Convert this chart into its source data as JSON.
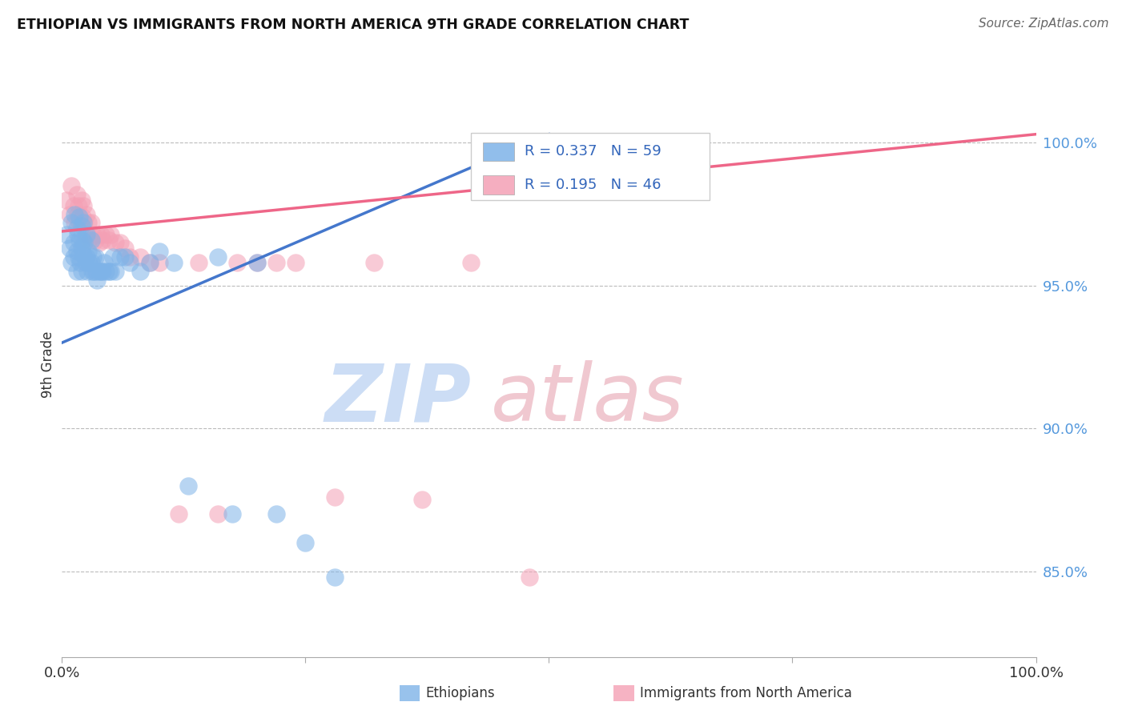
{
  "title": "ETHIOPIAN VS IMMIGRANTS FROM NORTH AMERICA 9TH GRADE CORRELATION CHART",
  "source": "Source: ZipAtlas.com",
  "ylabel": "9th Grade",
  "blue_R": 0.337,
  "blue_N": 59,
  "pink_R": 0.195,
  "pink_N": 46,
  "blue_color": "#7EB3E8",
  "pink_color": "#F4A0B5",
  "blue_line_color": "#4477CC",
  "pink_line_color": "#EE6688",
  "yticks": [
    "85.0%",
    "90.0%",
    "95.0%",
    "100.0%"
  ],
  "ytick_vals": [
    0.85,
    0.9,
    0.95,
    1.0
  ],
  "xlim": [
    0.0,
    1.0
  ],
  "ylim": [
    0.82,
    1.025
  ],
  "blue_trend_x": [
    0.0,
    0.5
  ],
  "blue_trend_y": [
    0.93,
    1.003
  ],
  "pink_trend_x": [
    0.0,
    1.0
  ],
  "pink_trend_y": [
    0.969,
    1.003
  ],
  "blue_scatter_x": [
    0.005,
    0.008,
    0.01,
    0.01,
    0.012,
    0.012,
    0.013,
    0.015,
    0.015,
    0.015,
    0.016,
    0.017,
    0.018,
    0.018,
    0.019,
    0.02,
    0.02,
    0.02,
    0.021,
    0.022,
    0.022,
    0.023,
    0.024,
    0.025,
    0.025,
    0.026,
    0.027,
    0.028,
    0.03,
    0.03,
    0.031,
    0.032,
    0.033,
    0.034,
    0.035,
    0.036,
    0.038,
    0.04,
    0.042,
    0.043,
    0.045,
    0.048,
    0.05,
    0.052,
    0.055,
    0.06,
    0.065,
    0.07,
    0.08,
    0.09,
    0.1,
    0.115,
    0.13,
    0.16,
    0.175,
    0.2,
    0.22,
    0.25,
    0.28
  ],
  "blue_scatter_y": [
    0.968,
    0.963,
    0.972,
    0.958,
    0.965,
    0.96,
    0.975,
    0.97,
    0.962,
    0.955,
    0.968,
    0.96,
    0.974,
    0.966,
    0.958,
    0.971,
    0.963,
    0.955,
    0.966,
    0.972,
    0.961,
    0.965,
    0.958,
    0.968,
    0.96,
    0.955,
    0.962,
    0.958,
    0.966,
    0.958,
    0.955,
    0.96,
    0.955,
    0.96,
    0.955,
    0.952,
    0.955,
    0.955,
    0.955,
    0.958,
    0.955,
    0.955,
    0.955,
    0.96,
    0.955,
    0.96,
    0.96,
    0.958,
    0.955,
    0.958,
    0.962,
    0.958,
    0.88,
    0.96,
    0.87,
    0.958,
    0.87,
    0.86,
    0.848
  ],
  "pink_scatter_x": [
    0.005,
    0.008,
    0.01,
    0.012,
    0.013,
    0.015,
    0.016,
    0.017,
    0.018,
    0.02,
    0.021,
    0.022,
    0.023,
    0.025,
    0.026,
    0.027,
    0.028,
    0.03,
    0.032,
    0.034,
    0.036,
    0.038,
    0.04,
    0.042,
    0.045,
    0.048,
    0.05,
    0.055,
    0.06,
    0.065,
    0.07,
    0.08,
    0.09,
    0.1,
    0.12,
    0.14,
    0.16,
    0.18,
    0.2,
    0.22,
    0.24,
    0.28,
    0.32,
    0.37,
    0.42,
    0.48
  ],
  "pink_scatter_y": [
    0.98,
    0.975,
    0.985,
    0.978,
    0.972,
    0.982,
    0.975,
    0.978,
    0.972,
    0.98,
    0.974,
    0.978,
    0.972,
    0.975,
    0.968,
    0.972,
    0.966,
    0.972,
    0.968,
    0.966,
    0.968,
    0.965,
    0.968,
    0.966,
    0.968,
    0.966,
    0.968,
    0.965,
    0.965,
    0.963,
    0.96,
    0.96,
    0.958,
    0.958,
    0.87,
    0.958,
    0.87,
    0.958,
    0.958,
    0.958,
    0.958,
    0.876,
    0.958,
    0.875,
    0.958,
    0.848
  ]
}
